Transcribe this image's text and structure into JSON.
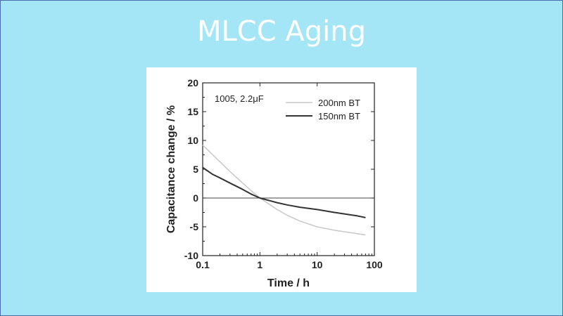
{
  "slide": {
    "title": "MLCC Aging"
  },
  "chart_data": {
    "type": "line",
    "annotation": "1005, 2.2μF",
    "xlabel": "Time / h",
    "ylabel": "Capacitance change / %",
    "xscale": "log",
    "xlim": [
      0.1,
      100
    ],
    "ylim": [
      -10,
      20
    ],
    "x_ticks": [
      {
        "value": 0.1,
        "label": "0.1"
      },
      {
        "value": 1,
        "label": "1"
      },
      {
        "value": 10,
        "label": "10"
      },
      {
        "value": 100,
        "label": "100"
      }
    ],
    "y_ticks": [
      {
        "value": 20,
        "label": "20"
      },
      {
        "value": 15,
        "label": "15"
      },
      {
        "value": 10,
        "label": "10"
      },
      {
        "value": 5,
        "label": "5"
      },
      {
        "value": 0,
        "label": "0"
      },
      {
        "value": -5,
        "label": "-5"
      },
      {
        "value": -10,
        "label": "-10"
      }
    ],
    "reference_line_y": 0,
    "legend_position": "top-right",
    "grid": false,
    "series": [
      {
        "name": "200nm BT",
        "color": "#c8c8c8",
        "x": [
          0.1,
          0.15,
          0.2,
          0.3,
          0.5,
          0.7,
          1,
          2,
          3,
          5,
          10,
          20,
          50,
          70
        ],
        "y": [
          9.2,
          7.5,
          6.3,
          4.6,
          2.6,
          1.3,
          0.0,
          -2.0,
          -3.0,
          -4.0,
          -5.0,
          -5.6,
          -6.2,
          -6.4
        ]
      },
      {
        "name": "150nm BT",
        "color": "#333333",
        "x": [
          0.1,
          0.15,
          0.2,
          0.3,
          0.5,
          0.7,
          1,
          2,
          3,
          5,
          10,
          20,
          50,
          70
        ],
        "y": [
          5.3,
          4.1,
          3.5,
          2.6,
          1.5,
          0.7,
          0.0,
          -0.8,
          -1.2,
          -1.6,
          -2.0,
          -2.5,
          -3.1,
          -3.4
        ]
      }
    ]
  }
}
